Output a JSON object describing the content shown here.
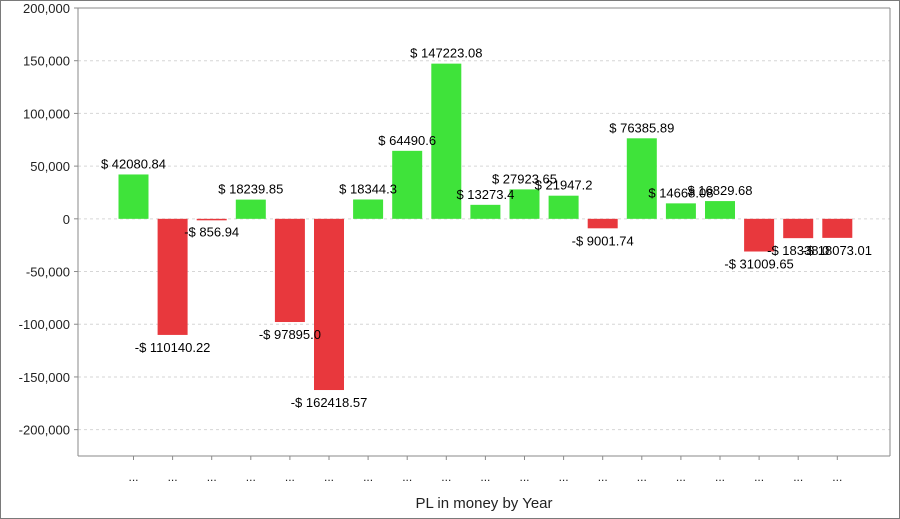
{
  "chart_data": {
    "type": "bar",
    "title": "",
    "xlabel": "PL in money by Year",
    "ylabel": "",
    "ylim": [
      -225000,
      200000
    ],
    "yticks": [
      200000,
      150000,
      100000,
      50000,
      0,
      -50000,
      -100000,
      -150000,
      -200000
    ],
    "ytick_labels": [
      "200,000",
      "150,000",
      "100,000",
      "50,000",
      "0",
      "-50,000",
      "-100,000",
      "-150,000",
      "-200,000"
    ],
    "grid": true,
    "legend": "none",
    "categories": [
      "...",
      "...",
      "...",
      "...",
      "...",
      "...",
      "...",
      "...",
      "...",
      "...",
      "...",
      "...",
      "...",
      "...",
      "...",
      "...",
      "...",
      "...",
      "..."
    ],
    "values": [
      42080.84,
      -110140.22,
      -856.94,
      18239.85,
      -97895.0,
      -162418.57,
      18344.3,
      64490.6,
      147223.08,
      13273.4,
      27923.65,
      21947.2,
      -9001.74,
      76385.89,
      14668.08,
      16829.68,
      -31009.65,
      -18338.0,
      -18073.01
    ],
    "data_labels": [
      "$ 42080.84",
      "-$ 110140.22",
      "-$ 856.94",
      "$ 18239.85",
      "-$ 97895.0",
      "-$ 162418.57",
      "$ 18344.3",
      "$ 64490.6",
      "$ 147223.08",
      "$ 13273.4",
      "$ 27923.65",
      "$ 21947.2",
      "-$ 9001.74",
      "$ 76385.89",
      "$ 14668.08",
      "$ 16829.68",
      "-$ 31009.65",
      "-$ 18338.0",
      "-$ 18073.01"
    ],
    "colors": {
      "positive": "#3fe33a",
      "negative": "#e8383d",
      "grid": "#d6d6d6",
      "axis": "#8a8a8a"
    }
  }
}
